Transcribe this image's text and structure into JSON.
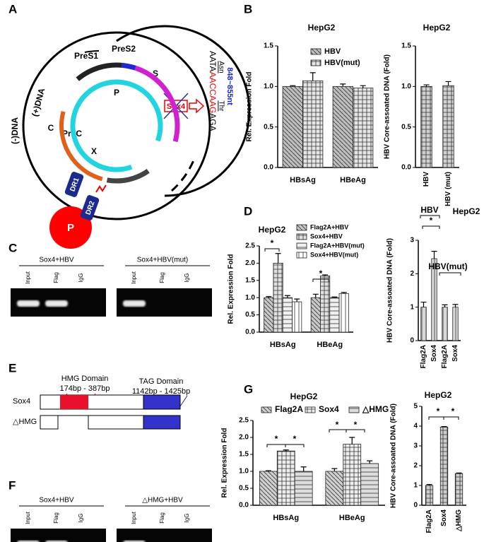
{
  "panels": [
    "A",
    "B",
    "C",
    "D",
    "E",
    "F",
    "G"
  ],
  "diagram_a": {
    "minus_dna": "(-)DNA",
    "plus_dna": "(+)DNA",
    "pres1": "PreS1",
    "pres2": "PreS2",
    "s": "S",
    "p": "P",
    "c": "C",
    "prec": "PreC",
    "x": "X",
    "dr1": "DR1",
    "dr2": "DR2",
    "polymerase": "P",
    "sox4": "Sox4",
    "seq": [
      "AATA",
      "AACCAAG",
      "AGA"
    ],
    "asn": "Asn",
    "thr": "Thr",
    "range": "848~855nt"
  },
  "gel_c": {
    "left": {
      "title": "Sox4+HBV",
      "lanes": [
        "Input",
        "Flag",
        "IgG"
      ]
    },
    "right": {
      "title": "Sox4+HBV(mut)",
      "lanes": [
        "Input",
        "Flag",
        "IgG"
      ]
    }
  },
  "diagram_e": {
    "hmg": "HMG Domain",
    "hmg_range": "174bp - 387bp",
    "tag": "TAG Domain",
    "tag_range": "1142bp - 1425bp",
    "sox4": "Sox4",
    "dhmg": "△HMG"
  },
  "gel_f": {
    "left": {
      "title": "Sox4+HBV",
      "lanes": [
        "Input",
        "Flag",
        "IgG"
      ]
    },
    "right": {
      "title": "△HMG+HBV",
      "lanes": [
        "Input",
        "Flag",
        "IgG"
      ]
    }
  },
  "chart_data": [
    {
      "type": "bar",
      "title": "HepG2",
      "y_label": "Rel.  Expression Fold",
      "categories": [
        "HBsAg",
        "HBeAg"
      ],
      "series": [
        {
          "name": "HBV",
          "color": "#bdbdbd",
          "values": [
            1.0,
            1.0
          ],
          "errors": [
            0.01,
            0.03
          ]
        },
        {
          "name": "HBV(mut)",
          "color": "#e6e6e6",
          "values": [
            1.07,
            0.98
          ],
          "errors": [
            0.1,
            0.03
          ]
        }
      ],
      "ylim": [
        0,
        1.5
      ],
      "yticks": [
        {
          "value": 0,
          "label": "0.0"
        },
        {
          "value": 0.5,
          "label": "0.5"
        },
        {
          "value": 1,
          "label": "1.0"
        },
        {
          "value": 1.5,
          "label": "1.5"
        }
      ]
    },
    {
      "type": "bar",
      "title": "HepG2",
      "y_label": "HBV Core-assoated DNA (Fold)",
      "categories": [
        "HBV",
        "HBV (mut)"
      ],
      "color": "#d0d0d0",
      "values": [
        1.0,
        1.01
      ],
      "errors": [
        0.02,
        0.05
      ],
      "ylim": [
        0,
        1.5
      ],
      "yticks": [
        {
          "value": 0,
          "label": "0.0"
        },
        {
          "value": 0.5,
          "label": "0.5"
        },
        {
          "value": 1,
          "label": "1.0"
        },
        {
          "value": 1.5,
          "label": "1.5"
        }
      ]
    },
    {
      "type": "bar",
      "title": "HepG2",
      "y_label": "Rel.  Expression Fold",
      "categories": [
        "HBsAg",
        "HBeAg"
      ],
      "series": [
        {
          "name": "Flag2A+HBV",
          "color": "#c8c8c8",
          "values": [
            1.0,
            1.0
          ],
          "errors": [
            0.03,
            0.1
          ]
        },
        {
          "name": "Sox4+HBV",
          "color": "#e0e0e0",
          "values": [
            2.0,
            1.63
          ],
          "errors": [
            0.28,
            0.03
          ]
        },
        {
          "name": "Flag2A+HBV(mut)",
          "color": "#f0f0f0",
          "values": [
            1.0,
            1.0
          ],
          "errors": [
            0.06,
            0.02
          ]
        },
        {
          "name": "Sox4+HBV(mut)",
          "color": "#ffffff",
          "values": [
            0.88,
            1.12
          ],
          "errors": [
            0.08,
            0.03
          ]
        }
      ],
      "annotations": [
        "*",
        "*"
      ],
      "ylim": [
        0,
        2.5
      ],
      "yticks": [
        {
          "value": 0,
          "label": "0.0"
        },
        {
          "value": 0.5,
          "label": "0.5"
        },
        {
          "value": 1,
          "label": "1.0"
        },
        {
          "value": 1.5,
          "label": "1.5"
        },
        {
          "value": 2,
          "label": "2.0"
        },
        {
          "value": 2.5,
          "label": "2.5"
        }
      ]
    },
    {
      "type": "bar",
      "title": "HepG2",
      "y_label": "HBV Core-assoated DNA (Fold)",
      "categories": [
        "Flag2A",
        "Sox4",
        "Flag2A",
        "Sox4"
      ],
      "color": "#d8d8d8",
      "values": [
        1.0,
        2.45,
        1.0,
        1.0
      ],
      "errors": [
        0.15,
        0.22,
        0.07,
        0.08
      ],
      "annotations": [
        "HBV",
        "*",
        "HBV(mut)"
      ],
      "ylim": [
        0,
        3
      ],
      "yticks": [
        0,
        1,
        2,
        3
      ]
    },
    {
      "type": "bar",
      "title": "HepG2",
      "y_label": "Rel. Expression Fold",
      "categories": [
        "HBsAg",
        "HBeAg"
      ],
      "series": [
        {
          "name": "Flag2A",
          "color": "#cfcfcf",
          "values": [
            1.0,
            1.0
          ],
          "errors": [
            0.02,
            0.08
          ]
        },
        {
          "name": "Sox4",
          "color": "#eeeeee",
          "values": [
            1.6,
            1.8
          ],
          "errors": [
            0.03,
            0.2
          ]
        },
        {
          "name": "△HMG",
          "color": "#dddddd",
          "values": [
            1.0,
            1.23
          ],
          "errors": [
            0.13,
            0.08
          ]
        }
      ],
      "annotations": [
        "*",
        "*",
        "*",
        "*"
      ],
      "ylim": [
        0,
        2.5
      ],
      "yticks": [
        {
          "value": 0,
          "label": "0.0"
        },
        {
          "value": 0.5,
          "label": "0.5"
        },
        {
          "value": 1,
          "label": "1.0"
        },
        {
          "value": 1.5,
          "label": "1.5"
        },
        {
          "value": 2,
          "label": "2.0"
        },
        {
          "value": 2.5,
          "label": "2.5"
        }
      ]
    },
    {
      "type": "bar",
      "title": "HepG2",
      "y_label": "HBV Core-assoated DNA (Fold)",
      "categories": [
        "Flag2A",
        "Sox4",
        "△HMG"
      ],
      "color": "#cccccc",
      "values": [
        1.0,
        3.95,
        1.6
      ],
      "errors": [
        0.05,
        0.03,
        0.03
      ],
      "annotations": [
        "*",
        "*"
      ],
      "ylim": [
        0,
        5
      ],
      "yticks": [
        0,
        1,
        2,
        3,
        4,
        5
      ]
    }
  ]
}
